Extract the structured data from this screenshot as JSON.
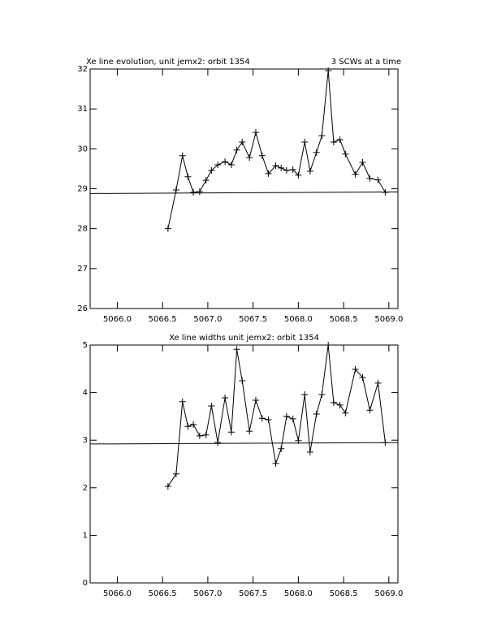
{
  "chart_data": [
    {
      "type": "line",
      "title": "Xe line evolution, unit jemx2: orbit 1354",
      "annotation": "3 SCWs at a time",
      "series": [
        {
          "color": "#000000",
          "marker": "+",
          "x": [
            5066.56,
            5066.65,
            5066.72,
            5066.78,
            5066.84,
            5066.91,
            5066.98,
            5067.04,
            5067.11,
            5067.19,
            5067.26,
            5067.32,
            5067.38,
            5067.46,
            5067.53,
            5067.6,
            5067.67,
            5067.75,
            5067.81,
            5067.87,
            5067.94,
            5068.0,
            5068.07,
            5068.13,
            5068.2,
            5068.26,
            5068.33,
            5068.39,
            5068.46,
            5068.52,
            5068.63,
            5068.71,
            5068.79,
            5068.88,
            5068.96
          ],
          "values": [
            28.0,
            28.97,
            29.83,
            29.3,
            28.91,
            28.93,
            29.21,
            29.46,
            29.6,
            29.68,
            29.6,
            29.97,
            30.17,
            29.78,
            30.41,
            29.83,
            29.38,
            29.58,
            29.52,
            29.46,
            29.48,
            29.34,
            30.17,
            29.44,
            29.91,
            30.33,
            31.96,
            30.17,
            30.23,
            29.87,
            29.36,
            29.66,
            29.26,
            29.22,
            28.91
          ]
        },
        {
          "color": "#000000",
          "x": [
            5065.7,
            5069.1
          ],
          "values": [
            28.88,
            28.92
          ]
        }
      ],
      "xlim": [
        5065.7,
        5069.1
      ],
      "ylim": [
        26,
        32
      ],
      "xticks": [
        {
          "value": 5066,
          "label": "5066.0"
        },
        5066.5,
        {
          "value": 5067,
          "label": "5067.0"
        },
        5067.5,
        {
          "value": 5068,
          "label": "5068.0"
        },
        5068.5,
        {
          "value": 5069,
          "label": "5069.0"
        }
      ],
      "yticks": [
        26,
        27,
        28,
        29,
        30,
        31,
        32
      ]
    },
    {
      "type": "line",
      "title": "Xe line widths unit jemx2: orbit 1354",
      "series": [
        {
          "color": "#000000",
          "marker": "+",
          "x": [
            5066.56,
            5066.65,
            5066.72,
            5066.78,
            5066.84,
            5066.91,
            5066.98,
            5067.04,
            5067.11,
            5067.19,
            5067.26,
            5067.32,
            5067.38,
            5067.46,
            5067.53,
            5067.6,
            5067.67,
            5067.75,
            5067.81,
            5067.87,
            5067.94,
            5068.0,
            5068.07,
            5068.13,
            5068.2,
            5068.26,
            5068.33,
            5068.39,
            5068.46,
            5068.52,
            5068.63,
            5068.71,
            5068.79,
            5068.88,
            5068.96
          ],
          "values": [
            2.03,
            2.29,
            3.81,
            3.29,
            3.33,
            3.09,
            3.11,
            3.72,
            2.95,
            3.89,
            3.17,
            4.91,
            4.25,
            3.19,
            3.84,
            3.46,
            3.43,
            2.51,
            2.82,
            3.5,
            3.45,
            2.99,
            3.96,
            2.75,
            3.55,
            3.96,
            5.0,
            3.79,
            3.74,
            3.57,
            4.49,
            4.32,
            3.63,
            4.2,
            2.95
          ]
        },
        {
          "color": "#000000",
          "x": [
            5065.7,
            5069.1
          ],
          "values": [
            2.92,
            2.95
          ]
        }
      ],
      "xlim": [
        5065.7,
        5069.1
      ],
      "ylim": [
        0,
        5
      ],
      "xticks": [
        {
          "value": 5066,
          "label": "5066.0"
        },
        5066.5,
        {
          "value": 5067,
          "label": "5067.0"
        },
        5067.5,
        {
          "value": 5068,
          "label": "5068.0"
        },
        5068.5,
        {
          "value": 5069,
          "label": "5069.0"
        }
      ],
      "yticks": [
        0,
        1,
        2,
        3,
        4,
        5
      ]
    }
  ]
}
